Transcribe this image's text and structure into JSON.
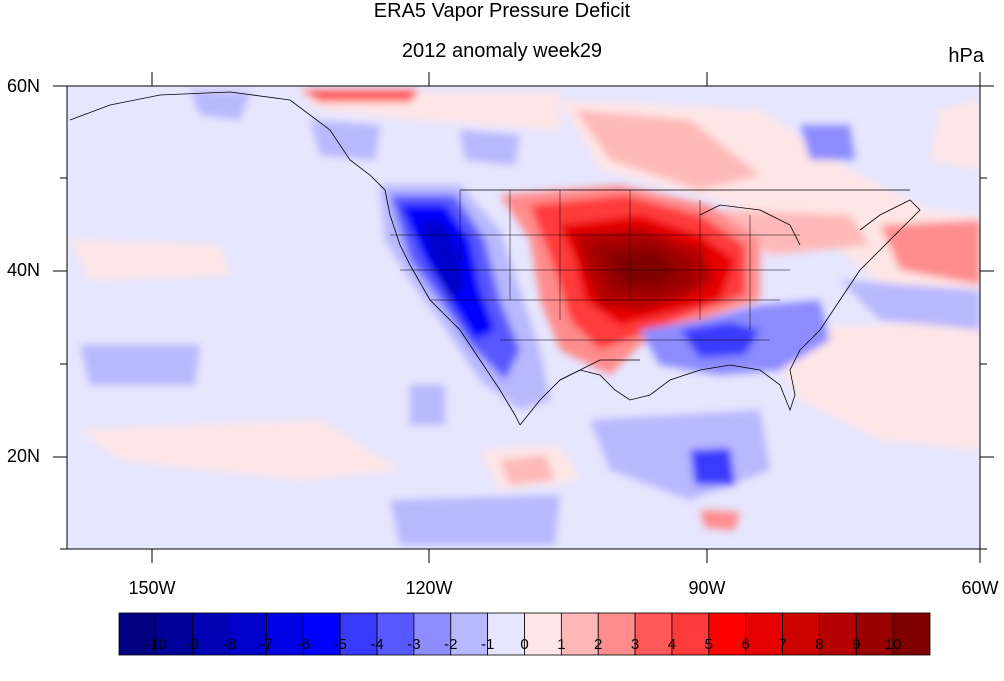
{
  "title": "ERA5 Vapor Pressure Deficit",
  "subtitle": "2012 anomaly week29",
  "units": "hPa",
  "lat_ticks": [
    "60N",
    "40N",
    "20N"
  ],
  "lon_ticks": [
    "150W",
    "120W",
    "90W",
    "60W"
  ],
  "colorbar": {
    "labels": [
      "-10",
      "-9",
      "-8",
      "-7",
      "-6",
      "-5",
      "-4",
      "-3",
      "-2",
      "-1",
      "0",
      "1",
      "2",
      "3",
      "4",
      "5",
      "6",
      "7",
      "8",
      "9",
      "10"
    ],
    "colors": [
      "#000080",
      "#00009a",
      "#0000b4",
      "#0000cd",
      "#0000e6",
      "#0000ff",
      "#3a3aff",
      "#5858ff",
      "#8c8cff",
      "#b8b8ff",
      "#e6e6ff",
      "#ffe6e6",
      "#ffb8b8",
      "#ff8c8c",
      "#ff5858",
      "#ff3a3a",
      "#ff0000",
      "#e60000",
      "#cd0000",
      "#b40000",
      "#9a0000",
      "#800000"
    ]
  },
  "map": {
    "background_color": "#e6e6ff",
    "region": "lon 160W-60W, lat 10N-60N",
    "features": [
      "coastlines",
      "US state boundaries",
      "national borders"
    ]
  }
}
